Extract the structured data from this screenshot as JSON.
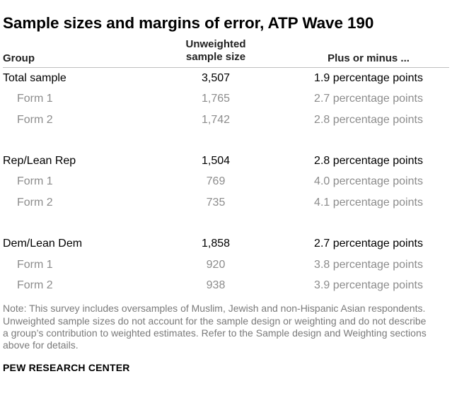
{
  "title": "Sample sizes and margins of error, ATP Wave 190",
  "headers": {
    "group": "Group",
    "size_line1": "Unweighted",
    "size_line2": "sample size",
    "moe": "Plus or minus ..."
  },
  "rows": [
    {
      "group": "Total sample",
      "size": "3,507",
      "moe": "1.9 percentage points"
    },
    {
      "group": "Form 1",
      "size": "1,765",
      "moe": "2.7 percentage points"
    },
    {
      "group": "Form 2",
      "size": "1,742",
      "moe": "2.8 percentage points"
    },
    {
      "group": "Rep/Lean Rep",
      "size": "1,504",
      "moe": "2.8 percentage points"
    },
    {
      "group": "Form 1",
      "size": "769",
      "moe": "4.0 percentage points"
    },
    {
      "group": "Form 2",
      "size": "735",
      "moe": "4.1 percentage points"
    },
    {
      "group": "Dem/Lean Dem",
      "size": "1,858",
      "moe": "2.7 percentage points"
    },
    {
      "group": "Form 1",
      "size": "920",
      "moe": "3.8 percentage points"
    },
    {
      "group": "Form 2",
      "size": "938",
      "moe": "3.9 percentage points"
    }
  ],
  "note": "Note: This survey includes oversamples of Muslim, Jewish and non-Hispanic Asian respondents. Unweighted sample sizes do not account for the sample design or weighting and do not describe a group’s contribution to weighted estimates. Refer to the Sample design and Weighting sections above for details.",
  "source": "PEW RESEARCH CENTER"
}
